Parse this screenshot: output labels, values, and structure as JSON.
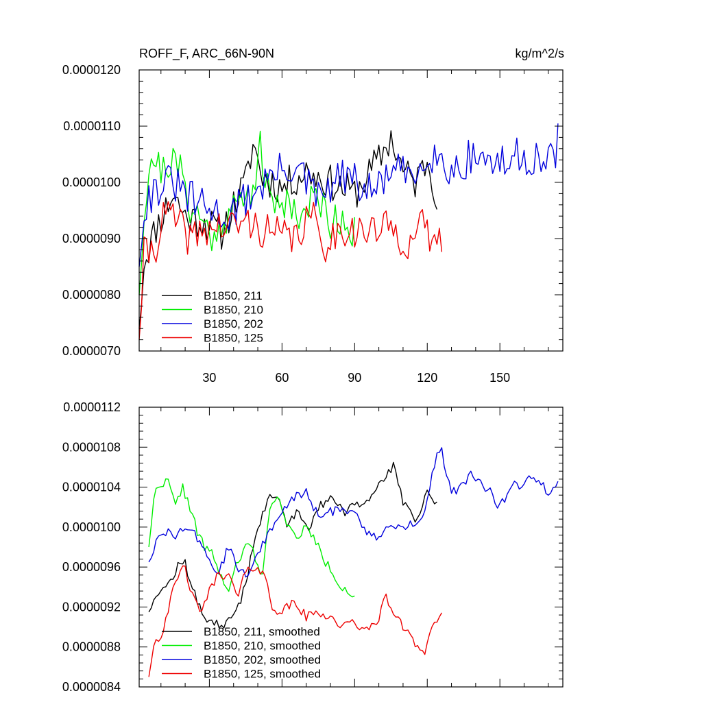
{
  "chart_data": [
    {
      "type": "line",
      "title_left": "ROFF_F, ARC_66N-90N",
      "title_right": "kg/m^2/s",
      "ylim": [
        7e-06,
        1.2e-05
      ],
      "xlim": [
        1,
        176
      ],
      "yticks": [
        7e-06,
        8e-06,
        9e-06,
        1e-05,
        1.1e-05,
        1.2e-05
      ],
      "ytick_labels": [
        "0.0000070",
        "0.0000080",
        "0.0000090",
        "0.0000100",
        "0.0000110",
        "0.0000120"
      ],
      "xticks": [
        30,
        60,
        90,
        120,
        150
      ],
      "xtick_labels": [
        "30",
        "60",
        "90",
        "120",
        "150"
      ],
      "series": [
        {
          "name": "B1850, 211",
          "color": "#000000",
          "x_end": 124,
          "anchors": [
            [
              1,
              7.4
            ],
            [
              3,
              8.6
            ],
            [
              8,
              9.2
            ],
            [
              15,
              9.8
            ],
            [
              20,
              9.4
            ],
            [
              28,
              9.3
            ],
            [
              35,
              9.1
            ],
            [
              40,
              9.6
            ],
            [
              45,
              10.0
            ],
            [
              48,
              10.7
            ],
            [
              52,
              10.1
            ],
            [
              60,
              9.9
            ],
            [
              70,
              10.2
            ],
            [
              80,
              10.0
            ],
            [
              90,
              9.8
            ],
            [
              100,
              10.4
            ],
            [
              105,
              10.8
            ],
            [
              110,
              10.2
            ],
            [
              115,
              10.0
            ],
            [
              120,
              10.4
            ],
            [
              124,
              9.8
            ]
          ],
          "noise": 0.32,
          "seed": 11
        },
        {
          "name": "B1850, 210",
          "color": "#00ee00",
          "x_end": 90,
          "anchors": [
            [
              1,
              8.0
            ],
            [
              3,
              9.5
            ],
            [
              6,
              10.5
            ],
            [
              10,
              10.2
            ],
            [
              14,
              10.4
            ],
            [
              18,
              10.2
            ],
            [
              22,
              9.6
            ],
            [
              27,
              9.3
            ],
            [
              32,
              9.0
            ],
            [
              36,
              9.4
            ],
            [
              42,
              9.6
            ],
            [
              47,
              9.8
            ],
            [
              51,
              10.6
            ],
            [
              55,
              9.6
            ],
            [
              62,
              9.7
            ],
            [
              68,
              9.4
            ],
            [
              75,
              9.8
            ],
            [
              80,
              9.3
            ],
            [
              85,
              9.4
            ],
            [
              90,
              9.1
            ]
          ],
          "noise": 0.34,
          "seed": 21
        },
        {
          "name": "B1850, 202",
          "color": "#0000dd",
          "x_end": 174,
          "anchors": [
            [
              1,
              8.5
            ],
            [
              3,
              9.6
            ],
            [
              8,
              9.9
            ],
            [
              15,
              10.0
            ],
            [
              22,
              9.7
            ],
            [
              30,
              9.5
            ],
            [
              38,
              9.4
            ],
            [
              45,
              9.7
            ],
            [
              55,
              10.1
            ],
            [
              65,
              10.3
            ],
            [
              75,
              9.7
            ],
            [
              85,
              10.1
            ],
            [
              90,
              10.0
            ],
            [
              97,
              9.8
            ],
            [
              105,
              10.2
            ],
            [
              115,
              10.1
            ],
            [
              120,
              10.6
            ],
            [
              125,
              10.4
            ],
            [
              130,
              10.2
            ],
            [
              140,
              10.5
            ],
            [
              150,
              10.3
            ],
            [
              160,
              10.5
            ],
            [
              170,
              10.3
            ],
            [
              174,
              10.7
            ]
          ],
          "noise": 0.35,
          "seed": 31
        },
        {
          "name": "B1850, 125",
          "color": "#ee0000",
          "x_end": 126,
          "anchors": [
            [
              1,
              7.2
            ],
            [
              3,
              8.7
            ],
            [
              8,
              8.9
            ],
            [
              12,
              9.5
            ],
            [
              16,
              9.3
            ],
            [
              22,
              9.0
            ],
            [
              30,
              9.2
            ],
            [
              38,
              9.2
            ],
            [
              45,
              9.3
            ],
            [
              55,
              9.1
            ],
            [
              65,
              9.0
            ],
            [
              72,
              9.4
            ],
            [
              78,
              8.9
            ],
            [
              85,
              9.2
            ],
            [
              95,
              9.1
            ],
            [
              105,
              9.2
            ],
            [
              112,
              8.9
            ],
            [
              118,
              9.2
            ],
            [
              122,
              9.0
            ],
            [
              126,
              8.9
            ]
          ],
          "noise": 0.33,
          "seed": 41
        }
      ],
      "legend": [
        "B1850, 211",
        "B1850, 210",
        "B1850, 202",
        "B1850, 125"
      ],
      "legend_position": "bottom-left"
    },
    {
      "type": "line",
      "ylim": [
        8.4e-06,
        1.12e-05
      ],
      "xlim": [
        1,
        176
      ],
      "yticks": [
        8.4e-06,
        8.8e-06,
        9.2e-06,
        9.6e-06,
        1e-05,
        1.04e-05,
        1.08e-05,
        1.12e-05
      ],
      "ytick_labels": [
        "0.0000084",
        "0.0000088",
        "0.0000092",
        "0.0000096",
        "0.0000100",
        "0.0000104",
        "0.0000108",
        "0.0000112"
      ],
      "xticks": [
        30,
        60,
        90,
        120,
        150
      ],
      "xtick_labels": [],
      "series": [
        {
          "name": "B1850, 211, smoothed",
          "color": "#000000",
          "x_end": 124,
          "anchors": [
            [
              5,
              9.15
            ],
            [
              8,
              9.35
            ],
            [
              12,
              9.4
            ],
            [
              15,
              9.5
            ],
            [
              18,
              9.65
            ],
            [
              20,
              9.65
            ],
            [
              22,
              9.45
            ],
            [
              25,
              9.25
            ],
            [
              28,
              9.1
            ],
            [
              32,
              9.05
            ],
            [
              36,
              9.0
            ],
            [
              40,
              9.1
            ],
            [
              42,
              9.2
            ],
            [
              45,
              9.45
            ],
            [
              48,
              9.8
            ],
            [
              50,
              10.0
            ],
            [
              55,
              10.3
            ],
            [
              58,
              10.3
            ],
            [
              62,
              10.05
            ],
            [
              67,
              10.15
            ],
            [
              71,
              10.0
            ],
            [
              75,
              10.2
            ],
            [
              80,
              10.3
            ],
            [
              85,
              10.15
            ],
            [
              90,
              10.2
            ],
            [
              95,
              10.25
            ],
            [
              100,
              10.45
            ],
            [
              104,
              10.55
            ],
            [
              106,
              10.6
            ],
            [
              110,
              10.25
            ],
            [
              115,
              10.05
            ],
            [
              118,
              10.2
            ],
            [
              120,
              10.35
            ],
            [
              122,
              10.3
            ],
            [
              124,
              10.22
            ]
          ],
          "noise": 0.05,
          "seed": 12
        },
        {
          "name": "B1850, 210, smoothed",
          "color": "#00ee00",
          "x_end": 90,
          "anchors": [
            [
              5,
              9.8
            ],
            [
              7,
              10.3
            ],
            [
              10,
              10.45
            ],
            [
              13,
              10.45
            ],
            [
              16,
              10.2
            ],
            [
              18,
              10.35
            ],
            [
              19,
              10.4
            ],
            [
              22,
              10.2
            ],
            [
              25,
              9.95
            ],
            [
              28,
              9.8
            ],
            [
              32,
              9.7
            ],
            [
              34,
              9.55
            ],
            [
              38,
              9.35
            ],
            [
              41,
              9.6
            ],
            [
              44,
              9.75
            ],
            [
              46,
              9.85
            ],
            [
              49,
              9.7
            ],
            [
              52,
              9.5
            ],
            [
              55,
              10.2
            ],
            [
              58,
              10.35
            ],
            [
              62,
              10.0
            ],
            [
              66,
              9.9
            ],
            [
              70,
              10.0
            ],
            [
              74,
              9.85
            ],
            [
              78,
              9.65
            ],
            [
              82,
              9.5
            ],
            [
              85,
              9.4
            ],
            [
              88,
              9.35
            ],
            [
              90,
              9.3
            ]
          ],
          "noise": 0.05,
          "seed": 22
        },
        {
          "name": "B1850, 202, smoothed",
          "color": "#0000dd",
          "x_end": 174,
          "anchors": [
            [
              5,
              9.65
            ],
            [
              8,
              9.85
            ],
            [
              12,
              9.95
            ],
            [
              16,
              9.9
            ],
            [
              20,
              10.0
            ],
            [
              25,
              9.9
            ],
            [
              30,
              9.65
            ],
            [
              34,
              9.55
            ],
            [
              38,
              9.8
            ],
            [
              42,
              9.6
            ],
            [
              46,
              9.5
            ],
            [
              50,
              9.75
            ],
            [
              55,
              9.95
            ],
            [
              60,
              10.15
            ],
            [
              65,
              10.3
            ],
            [
              70,
              10.35
            ],
            [
              75,
              10.1
            ],
            [
              80,
              10.15
            ],
            [
              85,
              10.2
            ],
            [
              90,
              10.15
            ],
            [
              95,
              9.95
            ],
            [
              100,
              9.9
            ],
            [
              105,
              10.0
            ],
            [
              110,
              10.0
            ],
            [
              115,
              10.05
            ],
            [
              118,
              10.1
            ],
            [
              121,
              10.4
            ],
            [
              124,
              10.75
            ],
            [
              126,
              10.75
            ],
            [
              130,
              10.35
            ],
            [
              134,
              10.4
            ],
            [
              138,
              10.55
            ],
            [
              142,
              10.45
            ],
            [
              146,
              10.35
            ],
            [
              150,
              10.2
            ],
            [
              155,
              10.4
            ],
            [
              160,
              10.45
            ],
            [
              165,
              10.5
            ],
            [
              170,
              10.35
            ],
            [
              174,
              10.45
            ]
          ],
          "noise": 0.05,
          "seed": 32
        },
        {
          "name": "B1850, 125, smoothed",
          "color": "#ee0000",
          "x_end": 126,
          "anchors": [
            [
              5,
              8.5
            ],
            [
              7,
              8.85
            ],
            [
              10,
              8.9
            ],
            [
              12,
              9.1
            ],
            [
              15,
              9.35
            ],
            [
              18,
              9.55
            ],
            [
              20,
              9.6
            ],
            [
              23,
              9.3
            ],
            [
              26,
              9.15
            ],
            [
              30,
              9.35
            ],
            [
              34,
              9.55
            ],
            [
              38,
              9.5
            ],
            [
              42,
              9.3
            ],
            [
              44,
              9.5
            ],
            [
              48,
              9.6
            ],
            [
              50,
              9.6
            ],
            [
              53,
              9.5
            ],
            [
              56,
              9.2
            ],
            [
              60,
              9.15
            ],
            [
              65,
              9.25
            ],
            [
              70,
              9.1
            ],
            [
              75,
              9.15
            ],
            [
              80,
              9.1
            ],
            [
              85,
              9.0
            ],
            [
              90,
              9.05
            ],
            [
              95,
              8.95
            ],
            [
              100,
              9.1
            ],
            [
              103,
              9.3
            ],
            [
              107,
              9.1
            ],
            [
              110,
              9.0
            ],
            [
              113,
              8.95
            ],
            [
              116,
              8.8
            ],
            [
              119,
              8.75
            ],
            [
              122,
              9.0
            ],
            [
              126,
              9.15
            ]
          ],
          "noise": 0.05,
          "seed": 42
        }
      ],
      "legend": [
        "B1850, 211, smoothed",
        "B1850, 210, smoothed",
        "B1850, 202, smoothed",
        "B1850, 125, smoothed"
      ],
      "legend_position": "bottom-left"
    }
  ]
}
